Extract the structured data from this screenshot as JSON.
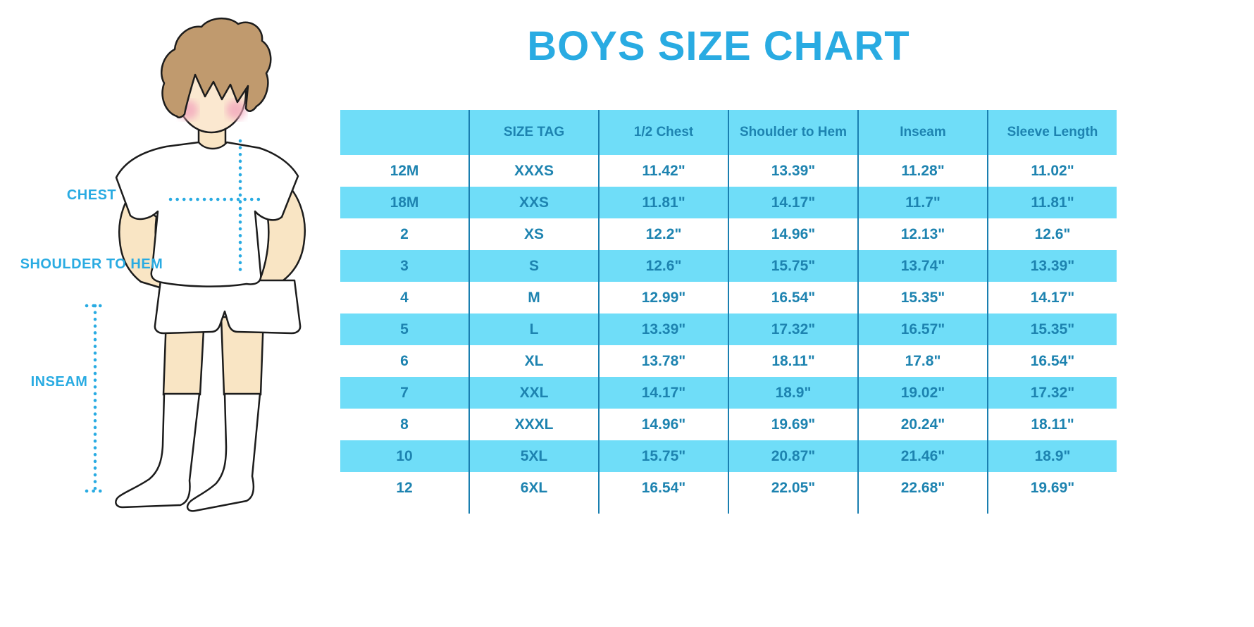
{
  "title": "BOYS SIZE CHART",
  "colors": {
    "accent_blue": "#29ABE2",
    "table_band": "#6FDDF8",
    "table_text": "#1D83B0",
    "separator_line": "#1A7FB0",
    "skin": "#F9E5C4",
    "hair": "#C09A6E",
    "cheeks": "#F3A7BD",
    "outline": "#1C1C1C"
  },
  "figure_labels": {
    "chest": "CHEST",
    "shoulder_to_hem": "SHOULDER TO HEM",
    "inseam": "INSEAM"
  },
  "chart_data": {
    "type": "table",
    "title": "BOYS SIZE CHART",
    "columns": [
      "",
      "SIZE TAG",
      "1/2 Chest",
      "Shoulder to Hem",
      "Inseam",
      "Sleeve Length"
    ],
    "rows": [
      [
        "12M",
        "XXXS",
        "11.42\"",
        "13.39\"",
        "11.28\"",
        "11.02\""
      ],
      [
        "18M",
        "XXS",
        "11.81\"",
        "14.17\"",
        "11.7\"",
        "11.81\""
      ],
      [
        "2",
        "XS",
        "12.2\"",
        "14.96\"",
        "12.13\"",
        "12.6\""
      ],
      [
        "3",
        "S",
        "12.6\"",
        "15.75\"",
        "13.74\"",
        "13.39\""
      ],
      [
        "4",
        "M",
        "12.99\"",
        "16.54\"",
        "15.35\"",
        "14.17\""
      ],
      [
        "5",
        "L",
        "13.39\"",
        "17.32\"",
        "16.57\"",
        "15.35\""
      ],
      [
        "6",
        "XL",
        "13.78\"",
        "18.11\"",
        "17.8\"",
        "16.54\""
      ],
      [
        "7",
        "XXL",
        "14.17\"",
        "18.9\"",
        "19.02\"",
        "17.32\""
      ],
      [
        "8",
        "XXXL",
        "14.96\"",
        "19.69\"",
        "20.24\"",
        "18.11\""
      ],
      [
        "10",
        "5XL",
        "15.75\"",
        "20.87\"",
        "21.46\"",
        "18.9\""
      ],
      [
        "12",
        "6XL",
        "16.54\"",
        "22.05\"",
        "22.68\"",
        "19.69\""
      ]
    ]
  }
}
